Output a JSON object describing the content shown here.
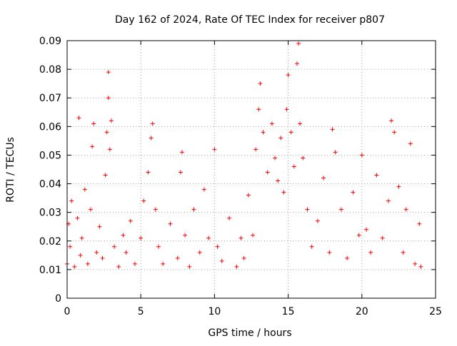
{
  "chart_data": {
    "type": "scatter",
    "title": "Day 162 of 2024, Rate Of TEC Index for receiver p807",
    "xlabel": "GPS time / hours",
    "ylabel": "ROTI / TECUs",
    "xlim": [
      0,
      25
    ],
    "ylim": [
      0,
      0.09
    ],
    "x_ticks": [
      0,
      5,
      10,
      15,
      20,
      25
    ],
    "x_tick_labels": [
      "0",
      "5",
      "10",
      "15",
      "20",
      "25"
    ],
    "y_ticks": [
      0,
      0.01,
      0.02,
      0.03,
      0.04,
      0.05,
      0.06,
      0.07,
      0.08,
      0.09
    ],
    "y_tick_labels": [
      "0",
      "0.01",
      "0.02",
      "0.03",
      "0.04",
      "0.05",
      "0.06",
      "0.07",
      "0.08",
      "0.09"
    ],
    "grid": true,
    "marker": "+",
    "series": [
      {
        "name": "ROTI",
        "color": "#ff0000",
        "x": [
          0.0,
          0.1,
          0.2,
          0.3,
          0.5,
          0.7,
          0.8,
          0.9,
          1.0,
          1.2,
          1.4,
          1.6,
          1.7,
          1.8,
          2.0,
          2.2,
          2.4,
          2.6,
          2.7,
          2.8,
          2.8,
          2.9,
          3.0,
          3.2,
          3.5,
          3.8,
          4.0,
          4.3,
          4.6,
          5.0,
          5.2,
          5.5,
          5.7,
          5.8,
          6.0,
          6.2,
          6.5,
          7.0,
          7.5,
          7.7,
          7.8,
          8.0,
          8.3,
          8.6,
          9.0,
          9.3,
          9.6,
          10.0,
          10.2,
          10.5,
          11.0,
          11.5,
          11.8,
          12.0,
          12.3,
          12.6,
          12.8,
          13.0,
          13.1,
          13.3,
          13.6,
          13.9,
          14.1,
          14.3,
          14.5,
          14.7,
          14.9,
          15.0,
          15.2,
          15.4,
          15.6,
          15.7,
          15.8,
          16.0,
          16.3,
          16.6,
          17.0,
          17.4,
          17.8,
          18.0,
          18.2,
          18.6,
          19.0,
          19.4,
          19.8,
          20.0,
          20.3,
          20.6,
          21.0,
          21.4,
          21.8,
          22.0,
          22.2,
          22.5,
          22.8,
          23.0,
          23.3,
          23.6,
          23.9,
          24.0
        ],
        "values": [
          0.012,
          0.026,
          0.018,
          0.034,
          0.011,
          0.028,
          0.063,
          0.015,
          0.021,
          0.038,
          0.012,
          0.031,
          0.053,
          0.061,
          0.016,
          0.025,
          0.014,
          0.043,
          0.058,
          0.079,
          0.07,
          0.052,
          0.062,
          0.018,
          0.011,
          0.022,
          0.016,
          0.027,
          0.012,
          0.021,
          0.034,
          0.044,
          0.056,
          0.061,
          0.031,
          0.018,
          0.012,
          0.026,
          0.014,
          0.044,
          0.051,
          0.022,
          0.011,
          0.031,
          0.016,
          0.038,
          0.021,
          0.052,
          0.018,
          0.013,
          0.028,
          0.011,
          0.021,
          0.014,
          0.036,
          0.022,
          0.052,
          0.066,
          0.075,
          0.058,
          0.044,
          0.061,
          0.049,
          0.041,
          0.056,
          0.037,
          0.066,
          0.078,
          0.058,
          0.046,
          0.082,
          0.089,
          0.061,
          0.049,
          0.031,
          0.018,
          0.027,
          0.042,
          0.016,
          0.059,
          0.051,
          0.031,
          0.014,
          0.037,
          0.022,
          0.05,
          0.024,
          0.016,
          0.043,
          0.021,
          0.034,
          0.062,
          0.058,
          0.039,
          0.016,
          0.031,
          0.054,
          0.012,
          0.026,
          0.011
        ]
      }
    ]
  }
}
